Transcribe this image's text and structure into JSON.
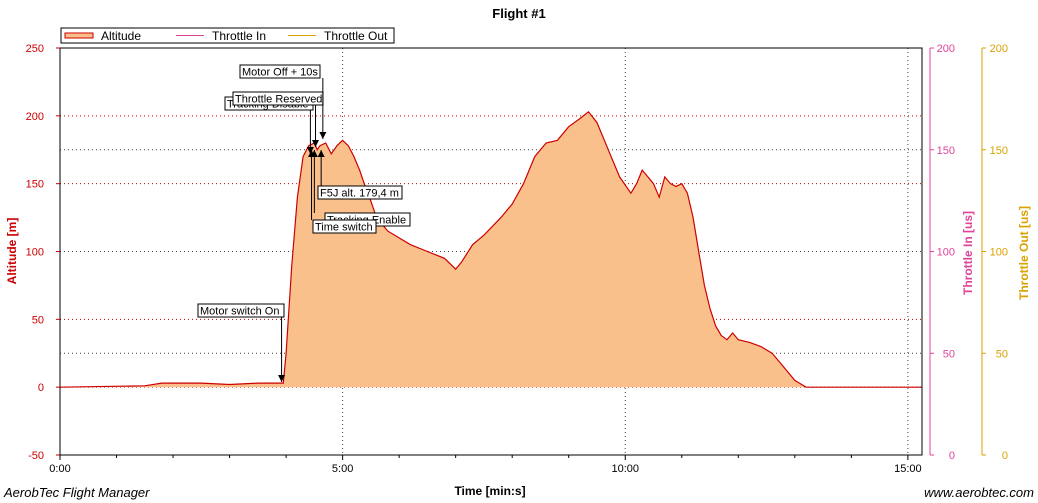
{
  "colors": {
    "altitude": "#cc0000",
    "altitude_fill": "#f9c08c",
    "throttle_in": "#e0449a",
    "throttle_out": "#d9a200",
    "grid_red": "#cc0000",
    "grid_dark": "#444444"
  },
  "footer": {
    "left": "AerobTec Flight Manager",
    "right": "www.aerobtec.com"
  },
  "chart_data": {
    "type": "area",
    "title": "Flight #1",
    "xlabel": "Time [min:s]",
    "xlim": [
      0,
      15.25
    ],
    "xticks": [
      {
        "value": 0,
        "label": "0:00"
      },
      {
        "value": 5,
        "label": "5:00"
      },
      {
        "value": 10,
        "label": "10:00"
      },
      {
        "value": 15,
        "label": "15:00"
      }
    ],
    "y_axes": [
      {
        "label": "Altitude [m]",
        "lim": [
          -50,
          250
        ],
        "ticks": [
          -50,
          0,
          50,
          100,
          150,
          200,
          250
        ]
      },
      {
        "label": "Throttle In [us]",
        "lim": [
          0,
          200
        ],
        "ticks": [
          0,
          50,
          100,
          150,
          200
        ]
      },
      {
        "label": "Throttle Out [us]",
        "lim": [
          0,
          200
        ],
        "ticks": [
          0,
          50,
          100,
          150,
          200
        ]
      }
    ],
    "legend": {
      "placement": "top-left",
      "entries": [
        "Altitude",
        "Throttle In",
        "Throttle Out"
      ]
    },
    "series": [
      {
        "name": "Altitude",
        "x": [
          0.0,
          1.5,
          1.8,
          2.5,
          3.0,
          3.5,
          3.9,
          3.95,
          4.0,
          4.1,
          4.2,
          4.3,
          4.4,
          4.5,
          4.55,
          4.6,
          4.7,
          4.8,
          4.9,
          5.0,
          5.1,
          5.2,
          5.3,
          5.4,
          5.5,
          5.6,
          5.8,
          6.0,
          6.2,
          6.5,
          6.8,
          7.0,
          7.1,
          7.3,
          7.5,
          7.8,
          8.0,
          8.2,
          8.4,
          8.6,
          8.8,
          9.0,
          9.2,
          9.35,
          9.5,
          9.7,
          9.9,
          10.1,
          10.2,
          10.3,
          10.4,
          10.5,
          10.6,
          10.7,
          10.8,
          10.9,
          11.0,
          11.1,
          11.2,
          11.3,
          11.4,
          11.5,
          11.6,
          11.7,
          11.8,
          11.9,
          12.0,
          12.2,
          12.4,
          12.6,
          12.8,
          13.0,
          13.2,
          13.5,
          14.0,
          15.25
        ],
        "values": [
          0,
          1,
          3,
          3,
          2,
          3,
          3,
          3,
          25,
          90,
          140,
          170,
          178,
          180,
          175,
          178,
          180,
          172,
          178,
          182,
          178,
          170,
          160,
          148,
          137,
          125,
          115,
          110,
          105,
          100,
          95,
          87,
          92,
          105,
          112,
          125,
          135,
          150,
          170,
          180,
          182,
          192,
          198,
          203,
          195,
          175,
          155,
          143,
          150,
          160,
          155,
          150,
          140,
          155,
          150,
          148,
          150,
          143,
          125,
          100,
          75,
          58,
          45,
          38,
          35,
          40,
          35,
          33,
          30,
          25,
          15,
          5,
          0,
          0,
          0,
          0
        ]
      },
      {
        "name": "Throttle In",
        "x": [],
        "values": []
      },
      {
        "name": "Throttle Out",
        "x": [],
        "values": []
      }
    ],
    "annotations": [
      {
        "text": "Motor switch On",
        "x": 3.92,
        "y": 2
      },
      {
        "text": "Tracking Disable",
        "x": 4.43,
        "y": 170
      },
      {
        "text": "Throttle Reserved",
        "x": 4.52,
        "y": 174
      },
      {
        "text": "Motor Off + 10s",
        "x": 4.65,
        "y": 180
      },
      {
        "text": "F5J alt. 179,4 m",
        "x": 4.62,
        "y": 175
      },
      {
        "text": "Tracking Enable",
        "x": 4.5,
        "y": 172
      },
      {
        "text": "Time switch",
        "x": 4.45,
        "y": 170
      }
    ]
  }
}
